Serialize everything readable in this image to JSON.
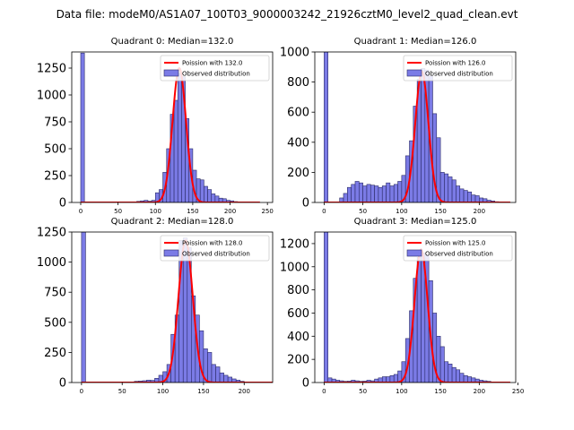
{
  "figure": {
    "suptitle": "Data file: modeM0/AS1A07_100T03_9000003242_21926cztM0_level2_quad_clean.evt"
  },
  "colors": {
    "bar_fill": "#7b7be6",
    "bar_edge": "#2a2a66",
    "poisson_line": "#ff0000",
    "axis": "#000000"
  },
  "chart_data": [
    {
      "type": "bar",
      "title": "Quadrant 0: Median=132.0",
      "xlim": [
        -12,
        257
      ],
      "ylim": [
        0,
        1400
      ],
      "xticks": [
        0,
        50,
        100,
        150,
        200,
        250
      ],
      "yticks": [
        0,
        250,
        500,
        750,
        1000,
        1250
      ],
      "bin_width": 5,
      "legend": {
        "placement": "top-right",
        "poisson_label": "Poission with 132.0",
        "observed_label": "Observed distribution"
      },
      "poisson": {
        "lambda": 132.0,
        "peak": 1250,
        "sigma": 9.0
      },
      "bins": [
        [
          0,
          1390
        ],
        [
          75,
          10
        ],
        [
          80,
          15
        ],
        [
          85,
          20
        ],
        [
          90,
          12
        ],
        [
          95,
          20
        ],
        [
          100,
          90
        ],
        [
          105,
          120
        ],
        [
          110,
          280
        ],
        [
          115,
          500
        ],
        [
          120,
          820
        ],
        [
          125,
          950
        ],
        [
          130,
          1200
        ],
        [
          135,
          1170
        ],
        [
          140,
          780
        ],
        [
          145,
          500
        ],
        [
          150,
          300
        ],
        [
          155,
          220
        ],
        [
          160,
          210
        ],
        [
          165,
          150
        ],
        [
          170,
          120
        ],
        [
          175,
          80
        ],
        [
          180,
          60
        ],
        [
          185,
          40
        ],
        [
          190,
          35
        ],
        [
          195,
          20
        ],
        [
          200,
          15
        ],
        [
          205,
          8
        ],
        [
          210,
          5
        ]
      ]
    },
    {
      "type": "bar",
      "title": "Quadrant 1: Median=126.0",
      "xlim": [
        -12,
        247
      ],
      "ylim": [
        0,
        1000
      ],
      "xticks": [
        0,
        50,
        100,
        150,
        200
      ],
      "yticks": [
        0,
        200,
        400,
        600,
        800,
        1000
      ],
      "bin_width": 5,
      "legend": {
        "placement": "top-right",
        "poisson_label": "Poission with 126.0",
        "observed_label": "Observed distribution"
      },
      "poisson": {
        "lambda": 126.0,
        "peak": 870,
        "sigma": 8.5
      },
      "bins": [
        [
          0,
          1000
        ],
        [
          20,
          30
        ],
        [
          25,
          60
        ],
        [
          30,
          100
        ],
        [
          35,
          120
        ],
        [
          40,
          140
        ],
        [
          45,
          130
        ],
        [
          50,
          110
        ],
        [
          55,
          120
        ],
        [
          60,
          115
        ],
        [
          65,
          110
        ],
        [
          70,
          100
        ],
        [
          75,
          110
        ],
        [
          80,
          130
        ],
        [
          85,
          110
        ],
        [
          90,
          120
        ],
        [
          95,
          140
        ],
        [
          100,
          180
        ],
        [
          105,
          310
        ],
        [
          110,
          410
        ],
        [
          115,
          640
        ],
        [
          120,
          820
        ],
        [
          125,
          890
        ],
        [
          130,
          880
        ],
        [
          135,
          840
        ],
        [
          140,
          590
        ],
        [
          145,
          430
        ],
        [
          150,
          200
        ],
        [
          155,
          190
        ],
        [
          160,
          170
        ],
        [
          165,
          150
        ],
        [
          170,
          110
        ],
        [
          175,
          90
        ],
        [
          180,
          80
        ],
        [
          185,
          70
        ],
        [
          190,
          50
        ],
        [
          195,
          45
        ],
        [
          200,
          30
        ],
        [
          205,
          25
        ],
        [
          210,
          15
        ],
        [
          215,
          10
        ],
        [
          220,
          5
        ]
      ]
    },
    {
      "type": "bar",
      "title": "Quadrant 2: Median=128.0",
      "xlim": [
        -12,
        235
      ],
      "ylim": [
        0,
        1250
      ],
      "xticks": [
        0,
        50,
        100,
        150,
        200
      ],
      "yticks": [
        0,
        250,
        500,
        750,
        1000,
        1250
      ],
      "bin_width": 5,
      "legend": {
        "placement": "top-right",
        "poisson_label": "Poission with 128.0",
        "observed_label": "Observed distribution"
      },
      "poisson": {
        "lambda": 128.0,
        "peak": 1180,
        "sigma": 8.8
      },
      "bins": [
        [
          0,
          1250
        ],
        [
          65,
          10
        ],
        [
          70,
          12
        ],
        [
          75,
          15
        ],
        [
          80,
          20
        ],
        [
          85,
          18
        ],
        [
          90,
          35
        ],
        [
          95,
          60
        ],
        [
          100,
          90
        ],
        [
          105,
          150
        ],
        [
          110,
          400
        ],
        [
          115,
          560
        ],
        [
          120,
          1180
        ],
        [
          125,
          1200
        ],
        [
          130,
          1120
        ],
        [
          135,
          720
        ],
        [
          140,
          560
        ],
        [
          145,
          430
        ],
        [
          150,
          280
        ],
        [
          155,
          250
        ],
        [
          160,
          150
        ],
        [
          165,
          130
        ],
        [
          170,
          80
        ],
        [
          175,
          60
        ],
        [
          180,
          45
        ],
        [
          185,
          30
        ],
        [
          190,
          20
        ],
        [
          195,
          10
        ],
        [
          200,
          5
        ]
      ]
    },
    {
      "type": "bar",
      "title": "Quadrant 3: Median=125.0",
      "xlim": [
        -12,
        247
      ],
      "ylim": [
        0,
        1300
      ],
      "xticks": [
        0,
        50,
        100,
        150,
        200,
        250
      ],
      "yticks": [
        0,
        200,
        400,
        600,
        800,
        1000,
        1200
      ],
      "bin_width": 5,
      "legend": {
        "placement": "top-right",
        "poisson_label": "Poission with 125.0",
        "observed_label": "Observed distribution"
      },
      "poisson": {
        "lambda": 125.0,
        "peak": 1150,
        "sigma": 8.5
      },
      "bins": [
        [
          0,
          1300
        ],
        [
          5,
          40
        ],
        [
          10,
          30
        ],
        [
          15,
          20
        ],
        [
          20,
          15
        ],
        [
          25,
          10
        ],
        [
          30,
          12
        ],
        [
          35,
          20
        ],
        [
          40,
          15
        ],
        [
          45,
          10
        ],
        [
          50,
          12
        ],
        [
          55,
          20
        ],
        [
          60,
          15
        ],
        [
          65,
          30
        ],
        [
          70,
          40
        ],
        [
          75,
          50
        ],
        [
          80,
          50
        ],
        [
          85,
          60
        ],
        [
          90,
          70
        ],
        [
          95,
          100
        ],
        [
          100,
          180
        ],
        [
          105,
          380
        ],
        [
          110,
          620
        ],
        [
          115,
          900
        ],
        [
          120,
          1080
        ],
        [
          125,
          1120
        ],
        [
          130,
          1100
        ],
        [
          135,
          880
        ],
        [
          140,
          600
        ],
        [
          145,
          400
        ],
        [
          150,
          310
        ],
        [
          155,
          180
        ],
        [
          160,
          160
        ],
        [
          165,
          130
        ],
        [
          170,
          110
        ],
        [
          175,
          80
        ],
        [
          180,
          60
        ],
        [
          185,
          50
        ],
        [
          190,
          40
        ],
        [
          195,
          30
        ],
        [
          200,
          20
        ],
        [
          205,
          15
        ],
        [
          210,
          10
        ],
        [
          215,
          5
        ]
      ]
    }
  ]
}
